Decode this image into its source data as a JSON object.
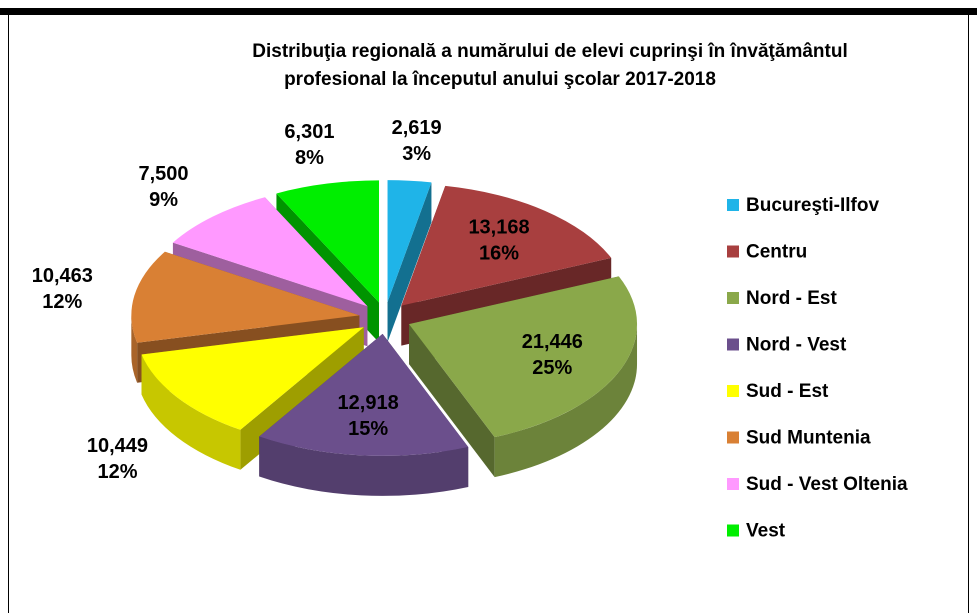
{
  "chart_data": {
    "type": "pie3d",
    "title": [
      "Distribuţia regională a numărului de elevi cuprinşi în învăţământul",
      "profesional la începutul anului şcolar 2017-2018"
    ],
    "categories": [
      "Bucureşti-Ilfov",
      "Centru",
      "Nord - Est",
      "Nord - Vest",
      "Sud - Est",
      "Sud Muntenia",
      "Sud - Vest Oltenia",
      "Vest"
    ],
    "values": [
      2619,
      13168,
      21446,
      12918,
      10449,
      10463,
      7500,
      6301
    ],
    "value_labels": [
      "2,619",
      "13,168",
      "21,446",
      "12,918",
      "10,449",
      "10,463",
      "7,500",
      "6,301"
    ],
    "percents": [
      3,
      16,
      25,
      15,
      12,
      12,
      9,
      8
    ],
    "percent_labels": [
      "3%",
      "16%",
      "25%",
      "15%",
      "12%",
      "12%",
      "9%",
      "8%"
    ],
    "colors": [
      "#1fb4e8",
      "#a83f3f",
      "#8aa84a",
      "#6b4f8c",
      "#ffff00",
      "#d98034",
      "#ff99ff",
      "#00ee00"
    ],
    "legend": "right"
  }
}
